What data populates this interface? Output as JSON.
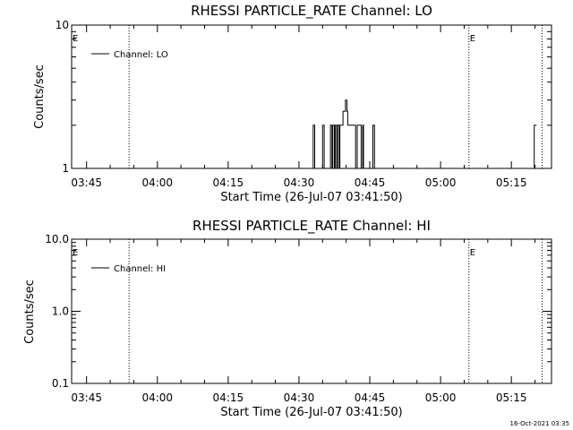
{
  "stamp": "16-Oct-2021 03:35",
  "chart_data": [
    {
      "type": "line",
      "title": "RHESSI PARTICLE_RATE Channel: LO",
      "xlabel": "Start Time (26-Jul-07 03:41:50)",
      "ylabel": "Counts/sec",
      "xlim": [
        "03:41:50",
        "05:23:30"
      ],
      "ylim": [
        1,
        10
      ],
      "yscale": "log",
      "xticks": [
        "03:45",
        "04:00",
        "04:15",
        "04:30",
        "04:45",
        "05:00",
        "05:15"
      ],
      "yticks": [
        {
          "value": 1,
          "label": "1"
        },
        {
          "value": 10,
          "label": "10"
        }
      ],
      "legend": {
        "placement": "top-left",
        "entries": [
          "Channel: LO"
        ]
      },
      "annotations": [
        {
          "text": "E",
          "time": "03:41:50"
        },
        {
          "text": "E",
          "time": "05:06:00"
        }
      ],
      "vlines": [
        "03:54:00",
        "05:06:00",
        "05:21:30"
      ],
      "grid": false,
      "series": [
        {
          "name": "Channel: LO",
          "x": [
            "04:32:50",
            "04:33:00",
            "04:33:20",
            "04:34:40",
            "04:35:00",
            "04:35:20",
            "04:36:30",
            "04:36:40",
            "04:37:00",
            "04:37:10",
            "04:37:30",
            "04:37:40",
            "04:38:00",
            "04:38:10",
            "04:38:30",
            "04:38:40",
            "04:39:10",
            "04:39:20",
            "04:39:40",
            "04:39:50",
            "04:40:10",
            "04:40:20",
            "04:40:40",
            "04:41:00",
            "04:41:30",
            "04:41:40",
            "04:42:00",
            "04:42:20",
            "04:43:00",
            "04:43:10",
            "04:43:30",
            "04:43:40",
            "04:44:00",
            "04:45:30",
            "04:45:40",
            "04:46:00",
            "05:19:40",
            "05:19:50",
            "05:20:00",
            "05:20:20"
          ],
          "y": [
            1,
            2,
            1,
            1,
            2,
            1,
            1,
            2,
            1,
            2,
            1,
            2,
            1,
            2,
            1,
            2,
            2,
            2.5,
            2.5,
            3,
            2.5,
            2,
            2,
            2,
            2,
            2,
            1,
            2,
            2,
            1,
            2,
            1,
            1,
            1,
            2,
            1,
            1,
            2,
            2,
            2
          ]
        }
      ]
    },
    {
      "type": "line",
      "title": "RHESSI PARTICLE_RATE Channel: HI",
      "xlabel": "Start Time (26-Jul-07 03:41:50)",
      "ylabel": "Counts/sec",
      "xlim": [
        "03:41:50",
        "05:23:30"
      ],
      "ylim": [
        0.1,
        10
      ],
      "yscale": "log",
      "xticks": [
        "03:45",
        "04:00",
        "04:15",
        "04:30",
        "04:45",
        "05:00",
        "05:15"
      ],
      "yticks": [
        {
          "value": 0.1,
          "label": "0.1"
        },
        {
          "value": 1,
          "label": "1.0"
        },
        {
          "value": 10,
          "label": "10.0"
        }
      ],
      "legend": {
        "placement": "top-left",
        "entries": [
          "Channel: HI"
        ]
      },
      "annotations": [
        {
          "text": "E",
          "time": "03:41:50"
        },
        {
          "text": "E",
          "time": "05:06:00"
        }
      ],
      "vlines": [
        "03:54:00",
        "05:06:00",
        "05:21:30"
      ],
      "grid": false,
      "series": [
        {
          "name": "Channel: HI",
          "x": [],
          "y": []
        }
      ]
    }
  ]
}
